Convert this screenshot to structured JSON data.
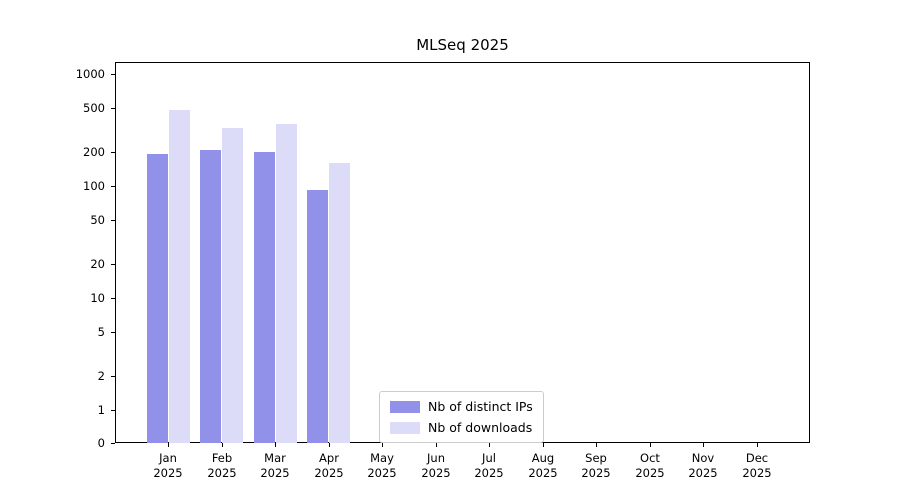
{
  "chart_data": {
    "type": "bar",
    "title": "MLSeq 2025",
    "categories": [
      "Jan",
      "Feb",
      "Mar",
      "Apr",
      "May",
      "Jun",
      "Jul",
      "Aug",
      "Sep",
      "Oct",
      "Nov",
      "Dec"
    ],
    "year_label": "2025",
    "series": [
      {
        "name": "Nb of distinct IPs",
        "color": "#9191e9",
        "values": [
          195,
          210,
          200,
          93,
          0,
          0,
          0,
          0,
          0,
          0,
          0,
          0
        ]
      },
      {
        "name": "Nb of downloads",
        "color": "#dcdcf8",
        "values": [
          480,
          330,
          360,
          160,
          0,
          0,
          0,
          0,
          0,
          0,
          0,
          0
        ]
      }
    ],
    "y_ticks": [
      0,
      1,
      2,
      5,
      10,
      20,
      50,
      100,
      200,
      500,
      1000
    ],
    "y_scale": "log",
    "ylim": [
      0,
      1400
    ],
    "grid": "horizontal",
    "legend_position": "bottom-center"
  }
}
